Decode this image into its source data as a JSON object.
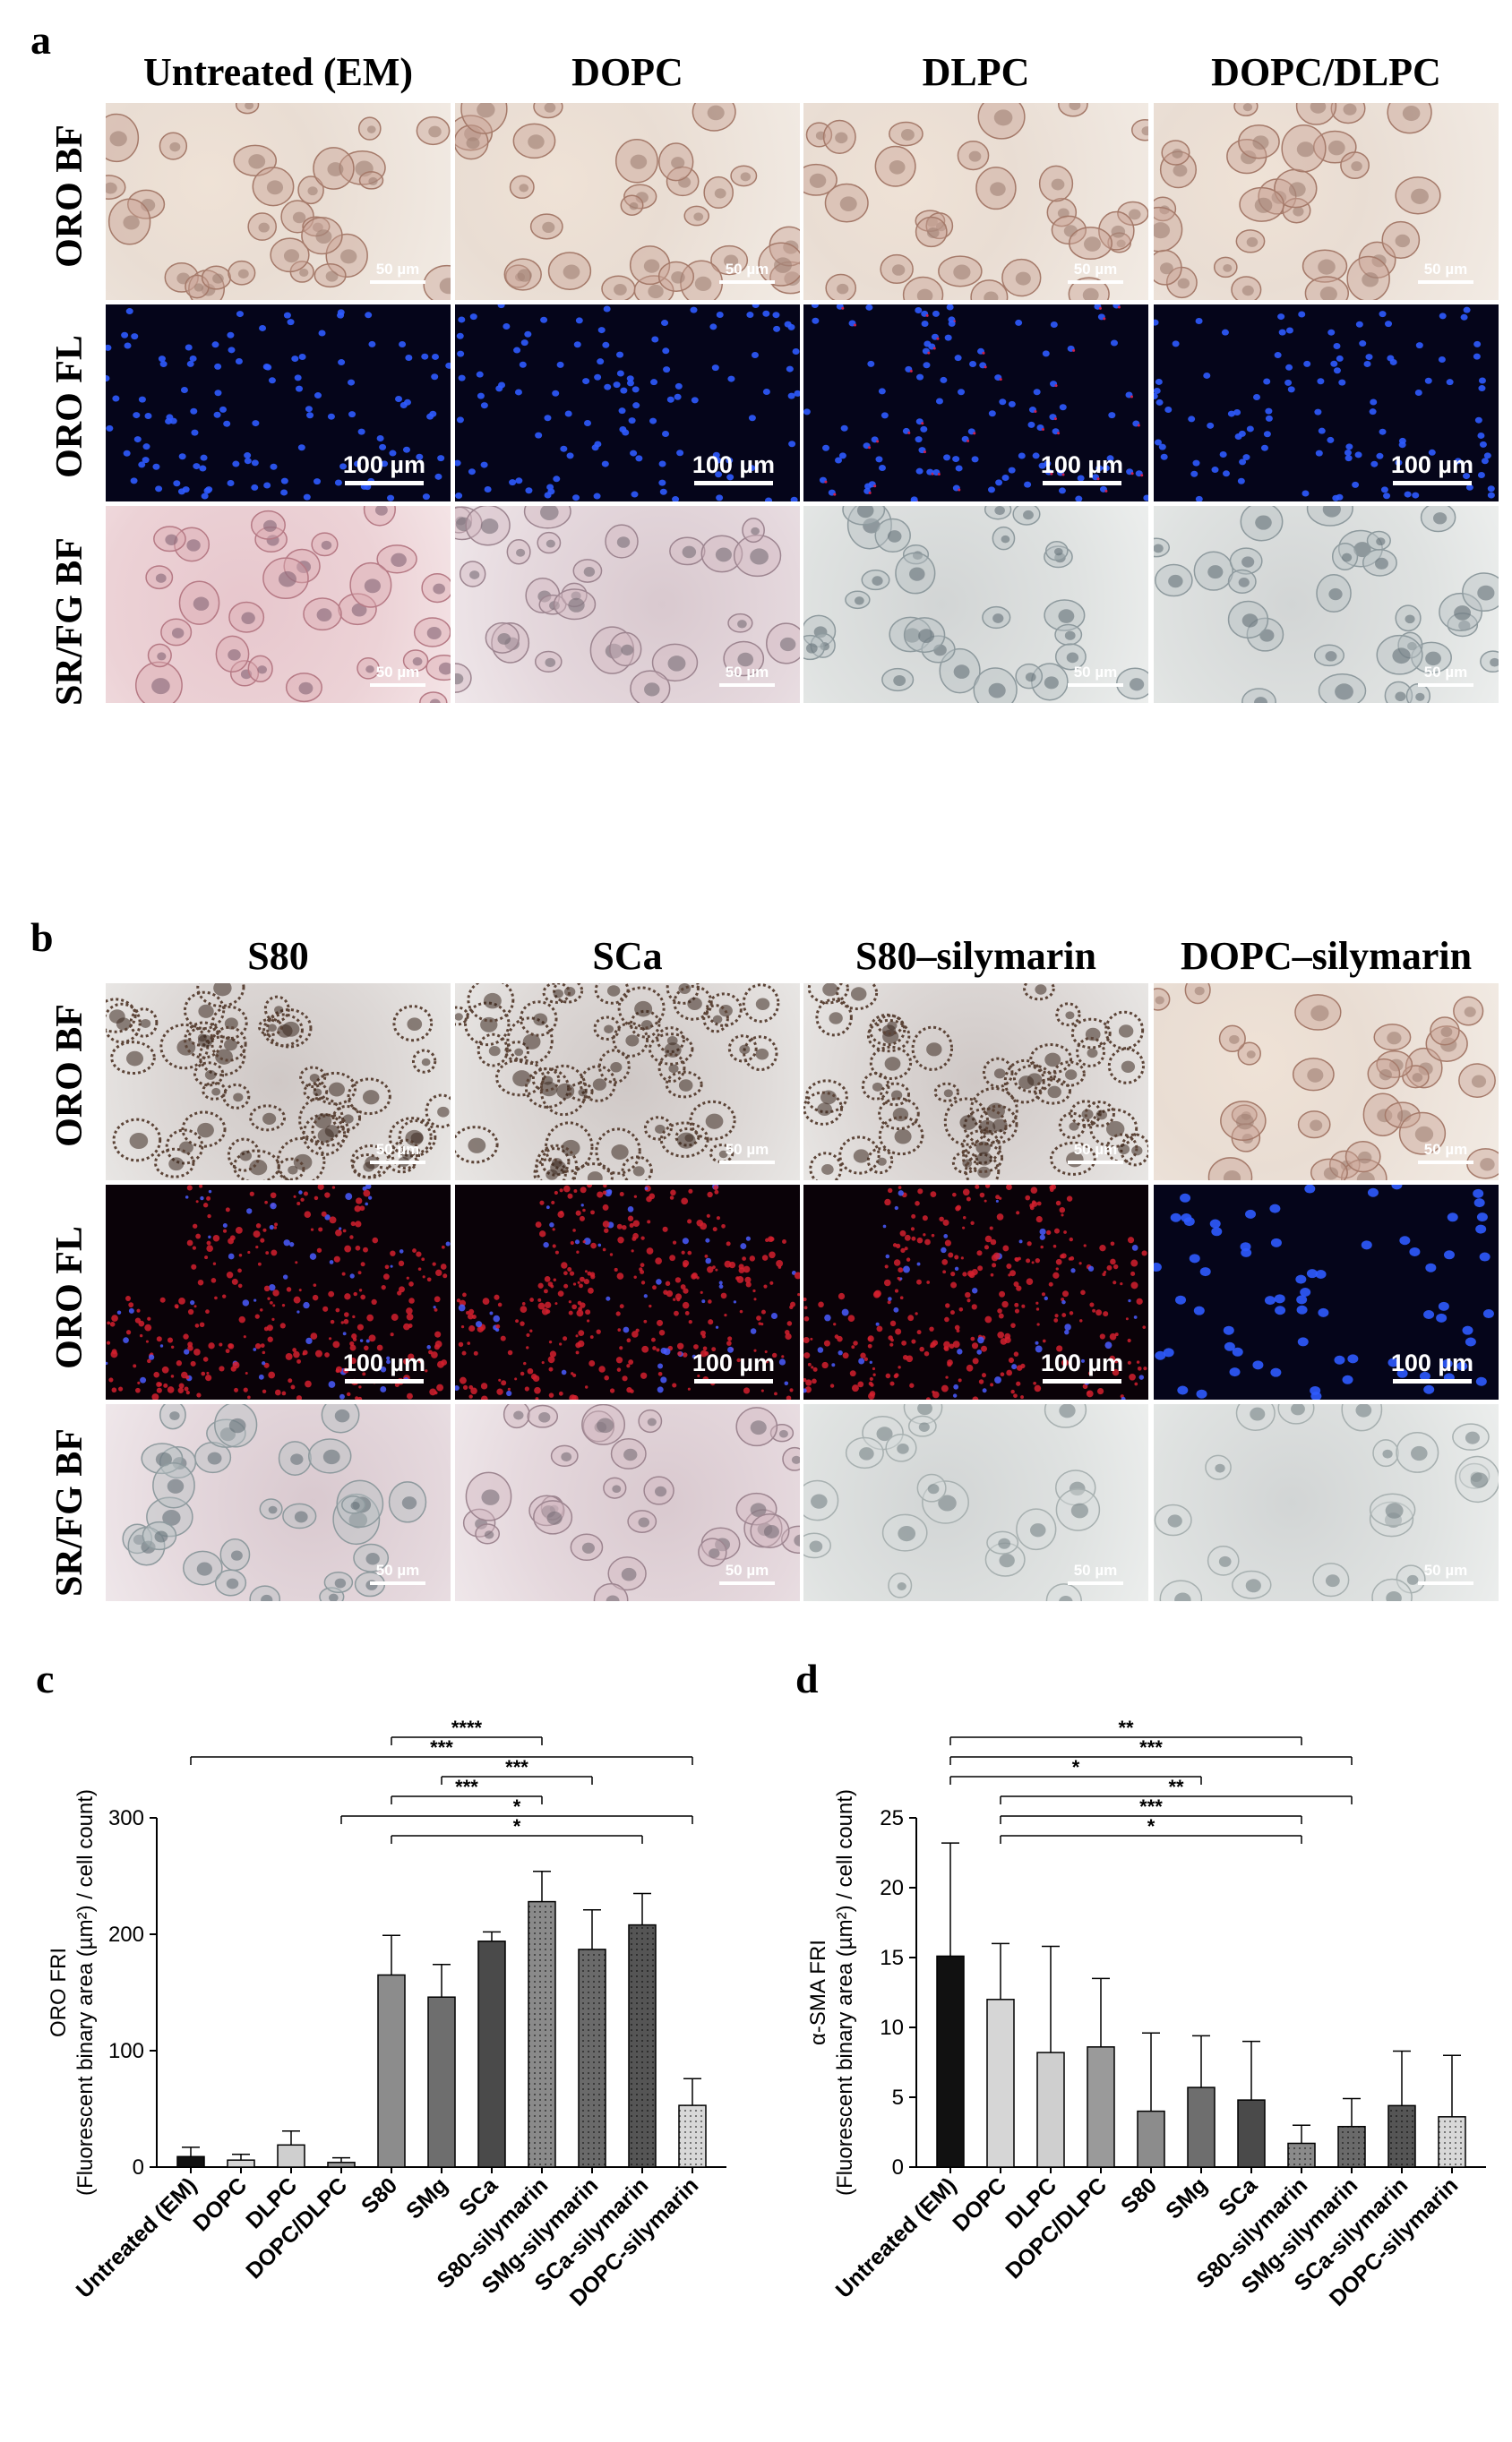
{
  "panel_a": {
    "letter": "a",
    "columns": [
      "Untreated (EM)",
      "DOPC",
      "DLPC",
      "DOPC/DLPC"
    ],
    "rows": [
      "ORO BF",
      "ORO FL",
      "SR/FG BF"
    ],
    "scale_bf": "50 µm",
    "scale_fl": "100 µm"
  },
  "panel_b": {
    "letter": "b",
    "columns": [
      "S80",
      "SCa",
      "S80–silymarin",
      "DOPC–silymarin"
    ],
    "rows": [
      "ORO BF",
      "ORO FL",
      "SR/FG BF"
    ],
    "scale_bf": "50 µm",
    "scale_fl": "100 µm"
  },
  "chart_data": [
    {
      "panel": "c",
      "type": "bar",
      "ylabel": "ORO FRI",
      "ylabel2": "(Fluorescent binary area (µm²) / cell count)",
      "ylim": [
        0,
        300
      ],
      "yticks": [
        0,
        100,
        200,
        300
      ],
      "categories": [
        "Untreated (EM)",
        "DOPC",
        "DLPC",
        "DOPC/DLPC",
        "S80",
        "SMg",
        "SCa",
        "S80-silymarin",
        "SMg-silymarin",
        "SCa-silymarin",
        "DOPC-silymarin"
      ],
      "values": [
        9,
        6,
        19,
        4,
        165,
        146,
        194,
        228,
        187,
        208,
        53
      ],
      "errors": [
        8,
        5,
        12,
        4,
        34,
        28,
        8,
        26,
        34,
        27,
        23
      ],
      "colors": [
        "#111111",
        "#d6d6d6",
        "#cfcfcf",
        "#9a9a9a",
        "#8c8c8c",
        "#6e6e6e",
        "#4a4a4a",
        "#8a8a8a",
        "#6a6a6a",
        "#555555",
        "#d8d8d8"
      ],
      "significance": [
        {
          "from": 4,
          "to": 7,
          "label": "****"
        },
        {
          "from": 0,
          "to": 10,
          "label": "***"
        },
        {
          "from": 5,
          "to": 8,
          "label": "***"
        },
        {
          "from": 4,
          "to": 7,
          "label": "***"
        },
        {
          "from": 3,
          "to": 10,
          "label": "*"
        },
        {
          "from": 4,
          "to": 9,
          "label": "*"
        }
      ]
    },
    {
      "panel": "d",
      "type": "bar",
      "ylabel": "α-SMA FRI",
      "ylabel2": "(Fluorescent binary area (µm²) / cell count)",
      "ylim": [
        0,
        25
      ],
      "yticks": [
        0,
        5,
        10,
        15,
        20,
        25
      ],
      "categories": [
        "Untreated (EM)",
        "DOPC",
        "DLPC",
        "DOPC/DLPC",
        "S80",
        "SMg",
        "SCa",
        "S80-silymarin",
        "SMg-silymarin",
        "SCa-silymarin",
        "DOPC-silymarin"
      ],
      "values": [
        15.1,
        12.0,
        8.2,
        8.6,
        4.0,
        5.7,
        4.8,
        1.7,
        2.9,
        4.4,
        3.6
      ],
      "errors": [
        8.1,
        4.0,
        7.6,
        4.9,
        5.6,
        3.7,
        4.2,
        1.3,
        2.0,
        3.9,
        4.4
      ],
      "colors": [
        "#111111",
        "#d6d6d6",
        "#cfcfcf",
        "#9a9a9a",
        "#8c8c8c",
        "#6e6e6e",
        "#4a4a4a",
        "#8a8a8a",
        "#6a6a6a",
        "#555555",
        "#d8d8d8"
      ],
      "significance": [
        {
          "from": 0,
          "to": 7,
          "label": "**"
        },
        {
          "from": 0,
          "to": 8,
          "label": "***"
        },
        {
          "from": 0,
          "to": 5,
          "label": "*"
        },
        {
          "from": 1,
          "to": 8,
          "label": "**"
        },
        {
          "from": 1,
          "to": 7,
          "label": "***"
        },
        {
          "from": 1,
          "to": 7,
          "label": "*"
        }
      ]
    }
  ]
}
